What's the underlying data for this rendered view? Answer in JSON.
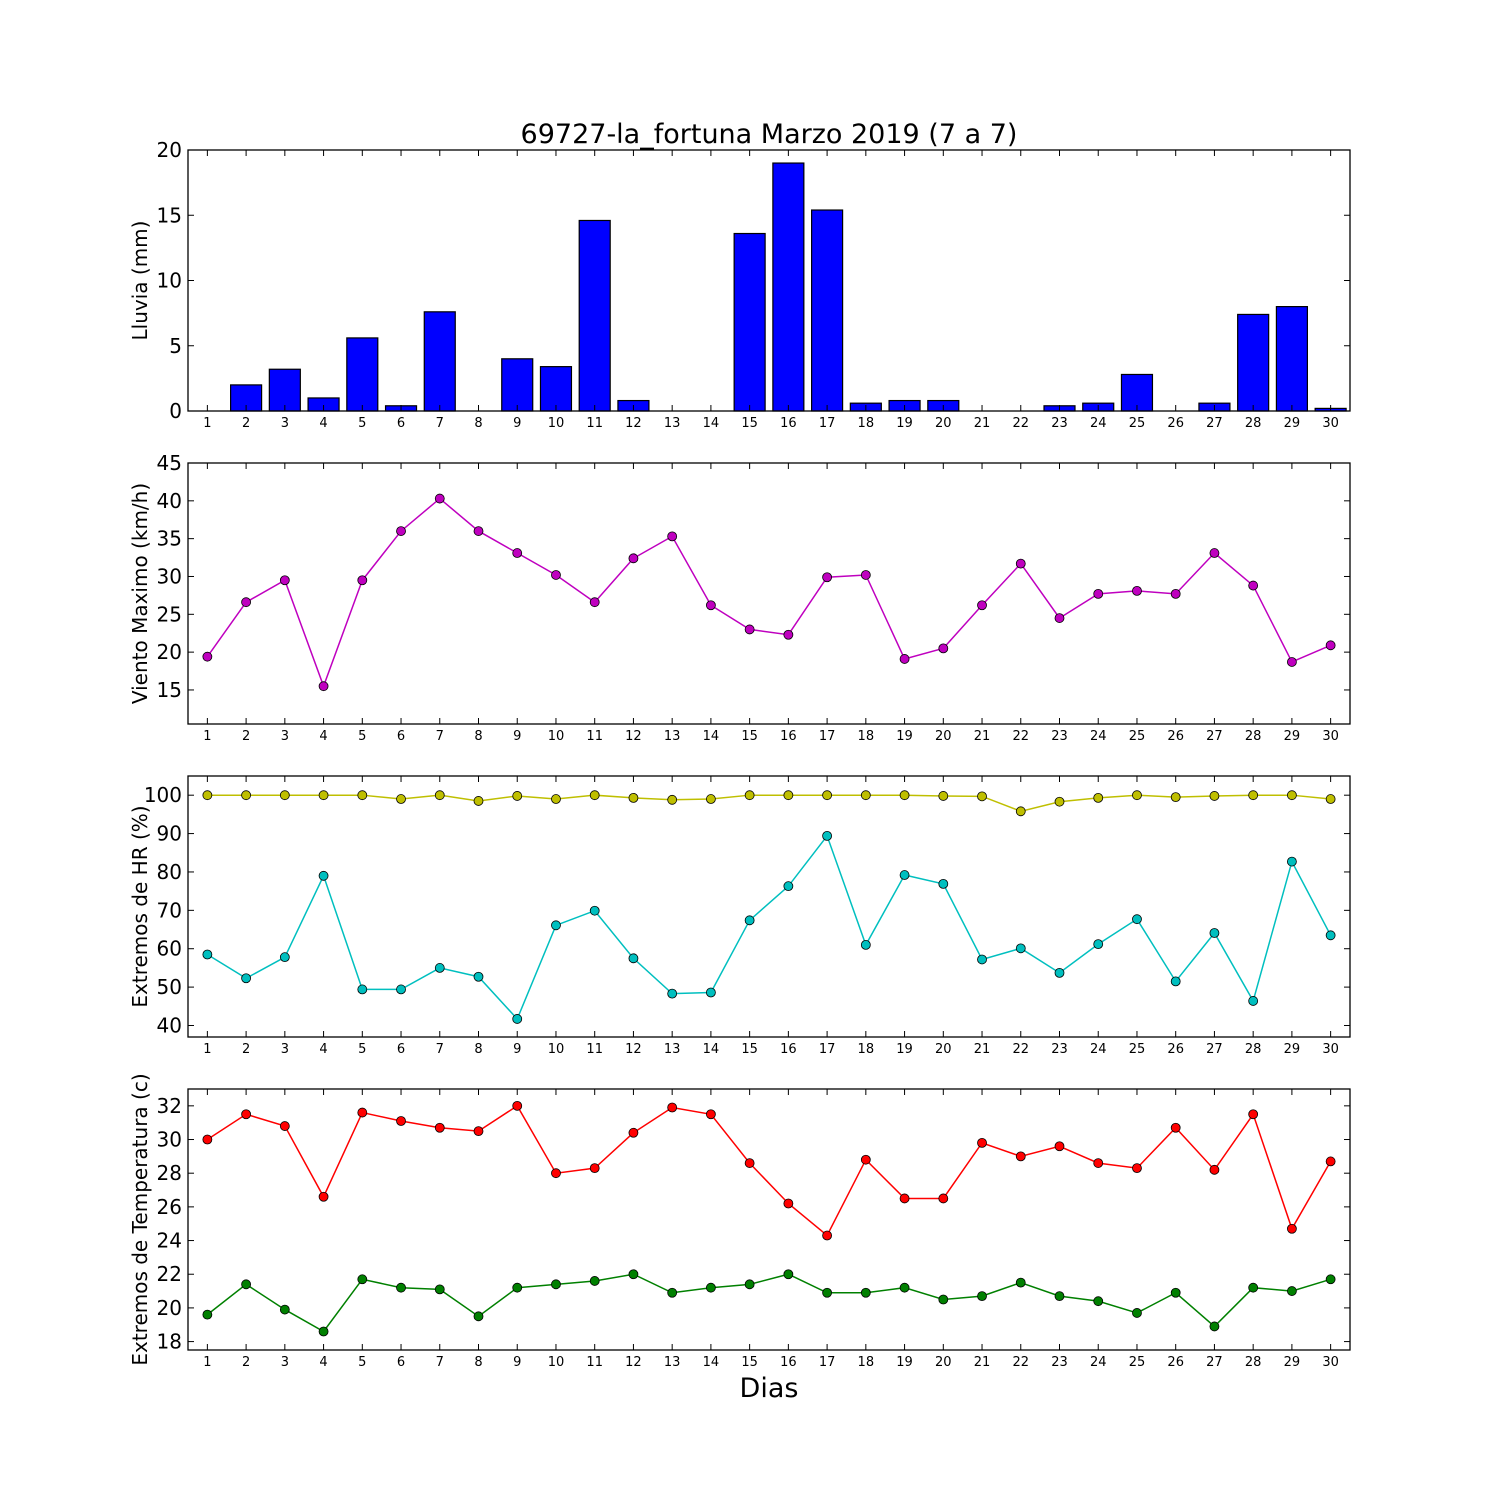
{
  "title": "69727-la_fortuna Marzo 2019  (7 a 7)",
  "xlabel": "Dias",
  "chart_data": [
    {
      "type": "bar",
      "ylabel": "Lluvia (mm)",
      "ylim": [
        0,
        20
      ],
      "yticks": [
        0,
        5,
        10,
        15,
        20
      ],
      "xticks": [
        1,
        2,
        3,
        4,
        5,
        6,
        7,
        8,
        9,
        10,
        11,
        12,
        13,
        14,
        15,
        16,
        17,
        18,
        19,
        20,
        21,
        22,
        23,
        24,
        25,
        26,
        27,
        28,
        29,
        30
      ],
      "categories": [
        1,
        2,
        3,
        4,
        5,
        6,
        7,
        8,
        9,
        10,
        11,
        12,
        13,
        14,
        15,
        16,
        17,
        18,
        19,
        20,
        21,
        22,
        23,
        24,
        25,
        26,
        27,
        28,
        29,
        30
      ],
      "series": [
        {
          "color": "#0000ff",
          "values": [
            0.0,
            2.0,
            3.2,
            1.0,
            5.6,
            0.4,
            7.6,
            0.0,
            4.0,
            3.4,
            14.6,
            0.8,
            0.0,
            0.0,
            13.6,
            19.0,
            15.4,
            0.6,
            0.8,
            0.8,
            0.0,
            0.0,
            0.4,
            0.6,
            2.8,
            0.0,
            0.6,
            7.4,
            8.0,
            0.2
          ]
        }
      ]
    },
    {
      "type": "line",
      "ylabel": "Viento Maximo (km/h)",
      "ylim": [
        10.5,
        45
      ],
      "yticks": [
        15,
        20,
        25,
        30,
        35,
        40,
        45
      ],
      "xticks": [
        1,
        2,
        3,
        4,
        5,
        6,
        7,
        8,
        9,
        10,
        11,
        12,
        13,
        14,
        15,
        16,
        17,
        18,
        19,
        20,
        21,
        22,
        23,
        24,
        25,
        26,
        27,
        28,
        29,
        30
      ],
      "x": [
        1,
        2,
        3,
        4,
        5,
        6,
        7,
        8,
        9,
        10,
        11,
        12,
        13,
        14,
        15,
        16,
        17,
        18,
        19,
        20,
        21,
        22,
        23,
        24,
        25,
        26,
        27,
        28,
        29,
        30
      ],
      "series": [
        {
          "color": "#bf00bf",
          "values": [
            19.4,
            26.6,
            29.5,
            15.5,
            29.5,
            36.0,
            40.3,
            36.0,
            33.1,
            30.2,
            26.6,
            32.4,
            35.3,
            26.2,
            23.0,
            22.3,
            29.9,
            30.2,
            19.1,
            20.5,
            26.2,
            31.7,
            24.5,
            27.7,
            28.1,
            27.7,
            33.1,
            28.8,
            18.7,
            20.9
          ]
        }
      ]
    },
    {
      "type": "line",
      "ylabel": "Extremos de HR (%)",
      "ylim": [
        37,
        105
      ],
      "yticks": [
        40,
        50,
        60,
        70,
        80,
        90,
        100
      ],
      "xticks": [
        1,
        2,
        3,
        4,
        5,
        6,
        7,
        8,
        9,
        10,
        11,
        12,
        13,
        14,
        15,
        16,
        17,
        18,
        19,
        20,
        21,
        22,
        23,
        24,
        25,
        26,
        27,
        28,
        29,
        30
      ],
      "x": [
        1,
        2,
        3,
        4,
        5,
        6,
        7,
        8,
        9,
        10,
        11,
        12,
        13,
        14,
        15,
        16,
        17,
        18,
        19,
        20,
        21,
        22,
        23,
        24,
        25,
        26,
        27,
        28,
        29,
        30
      ],
      "series": [
        {
          "color": "#bfbf00",
          "values": [
            100,
            100,
            100,
            100,
            100,
            99,
            100,
            98.5,
            99.8,
            99,
            100,
            99.3,
            98.8,
            99,
            100,
            100,
            100,
            100,
            100,
            99.8,
            99.7,
            95.8,
            98.3,
            99.3,
            100,
            99.5,
            99.8,
            100,
            100,
            99
          ]
        },
        {
          "color": "#00bfbf",
          "values": [
            58.5,
            52.3,
            57.8,
            79,
            49.4,
            49.4,
            55,
            52.7,
            41.7,
            66.1,
            69.9,
            57.5,
            48.3,
            48.6,
            67.4,
            76.3,
            89.4,
            61,
            79.2,
            76.9,
            57.2,
            60.1,
            53.7,
            61.2,
            67.7,
            51.5,
            64.1,
            46.4,
            82.7,
            63.5
          ]
        }
      ]
    },
    {
      "type": "line",
      "ylabel": "Extremos de Temperatura (c)",
      "ylim": [
        17.5,
        33
      ],
      "yticks": [
        18,
        20,
        22,
        24,
        26,
        28,
        30,
        32
      ],
      "xticks": [
        1,
        2,
        3,
        4,
        5,
        6,
        7,
        8,
        9,
        10,
        11,
        12,
        13,
        14,
        15,
        16,
        17,
        18,
        19,
        20,
        21,
        22,
        23,
        24,
        25,
        26,
        27,
        28,
        29,
        30
      ],
      "x": [
        1,
        2,
        3,
        4,
        5,
        6,
        7,
        8,
        9,
        10,
        11,
        12,
        13,
        14,
        15,
        16,
        17,
        18,
        19,
        20,
        21,
        22,
        23,
        24,
        25,
        26,
        27,
        28,
        29,
        30
      ],
      "series": [
        {
          "color": "#ff0000",
          "values": [
            30.0,
            31.5,
            30.8,
            26.6,
            31.6,
            31.1,
            30.7,
            30.5,
            32.0,
            28.0,
            28.3,
            30.4,
            31.9,
            31.5,
            28.6,
            26.2,
            24.3,
            28.8,
            26.5,
            26.5,
            29.8,
            29.0,
            29.6,
            28.6,
            28.3,
            30.7,
            28.2,
            31.5,
            24.7,
            28.7
          ]
        },
        {
          "color": "#008000",
          "values": [
            19.6,
            21.4,
            19.9,
            18.6,
            21.7,
            21.2,
            21.1,
            19.5,
            21.2,
            21.4,
            21.6,
            22.0,
            20.9,
            21.2,
            21.4,
            22.0,
            20.9,
            20.9,
            21.2,
            20.5,
            20.7,
            21.5,
            20.7,
            20.4,
            19.7,
            20.9,
            18.9,
            21.2,
            21.0,
            21.7
          ]
        }
      ]
    }
  ]
}
